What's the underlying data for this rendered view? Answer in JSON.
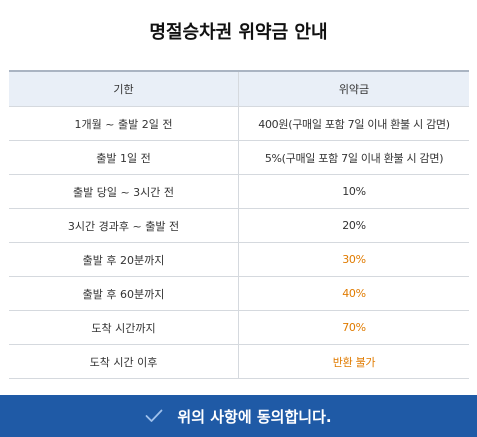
{
  "title": "명절승차권 위약금 안내",
  "table": {
    "headers": [
      "기한",
      "위약금"
    ],
    "rows": [
      {
        "period": "1개월 ~ 출발 2일 전",
        "fee": "400원(구매일 포함 7일 이내 환불 시 감면)",
        "highlight": false
      },
      {
        "period": "출발 1일 전",
        "fee": "5%(구매일 포함 7일 이내 환불 시 감면)",
        "highlight": false
      },
      {
        "period": "출발 당일 ~ 3시간 전",
        "fee": "10%",
        "highlight": false
      },
      {
        "period": "3시간 경과후 ~ 출발 전",
        "fee": "20%",
        "highlight": false
      },
      {
        "period": "출발 후 20분까지",
        "fee": "30%",
        "highlight": true
      },
      {
        "period": "출발 후 60분까지",
        "fee": "40%",
        "highlight": true
      },
      {
        "period": "도착 시간까지",
        "fee": "70%",
        "highlight": true
      },
      {
        "period": "도착 시간 이후",
        "fee": "반환 불가",
        "highlight": true
      }
    ]
  },
  "agree_button": {
    "label": "위의 사항에 동의합니다.",
    "icon": "check-icon"
  },
  "colors": {
    "accent": "#1f5aa6",
    "highlight_text": "#e07b00",
    "header_bg": "#e9eff7"
  }
}
